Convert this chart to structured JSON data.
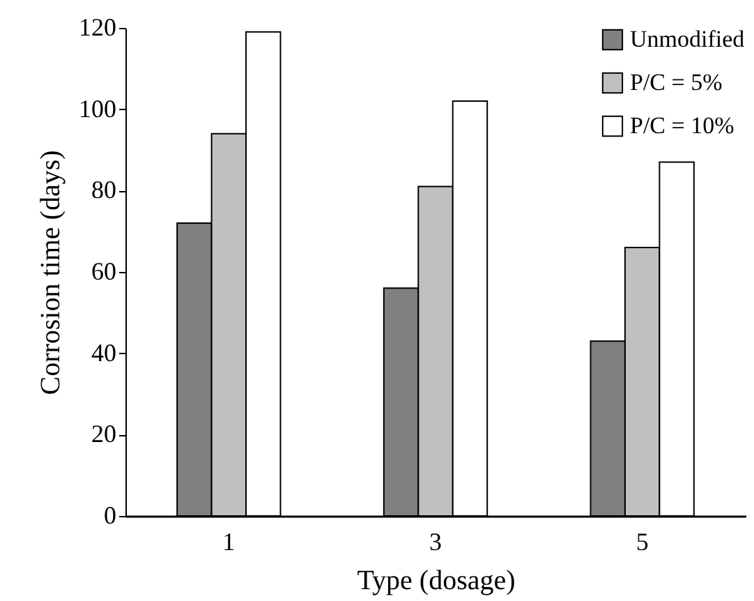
{
  "chart_data": {
    "type": "bar",
    "xlabel": "Type (dosage)",
    "ylabel": "Corrosion time (days)",
    "categories": [
      "1",
      "3",
      "5"
    ],
    "series": [
      {
        "name": "Unmodified",
        "color": "#808080",
        "values": [
          72,
          56,
          43
        ]
      },
      {
        "name": "P/C = 5%",
        "color": "#c0c0c0",
        "values": [
          94,
          81,
          66
        ]
      },
      {
        "name": "P/C = 10%",
        "color": "#ffffff",
        "values": [
          119,
          102,
          87
        ]
      }
    ],
    "ylim": [
      0,
      120
    ],
    "yticks": [
      0,
      20,
      40,
      60,
      80,
      100,
      120
    ],
    "grid": false,
    "legend": "top right"
  }
}
